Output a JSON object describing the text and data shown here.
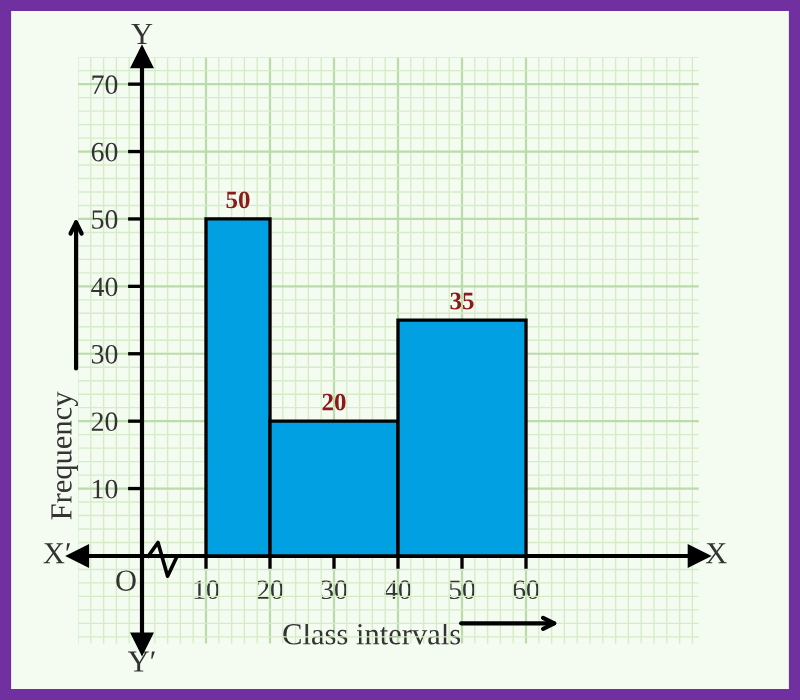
{
  "chart_data": {
    "type": "histogram",
    "bins": [
      10,
      20,
      40,
      60
    ],
    "values": [
      50,
      20,
      35
    ],
    "color": "#00a0e3",
    "data_labels": true,
    "xlabel": "Class intervals",
    "ylabel": "Frequency",
    "annotations": [
      "X′",
      "X",
      "Y",
      "Y′",
      "O"
    ],
    "xlim": [
      -10,
      87
    ],
    "ylim": [
      -13,
      74
    ],
    "xticks": [
      10,
      20,
      30,
      40,
      50,
      60
    ],
    "yticks": [
      10,
      20,
      30,
      40,
      50,
      60,
      70
    ],
    "grid": true
  }
}
